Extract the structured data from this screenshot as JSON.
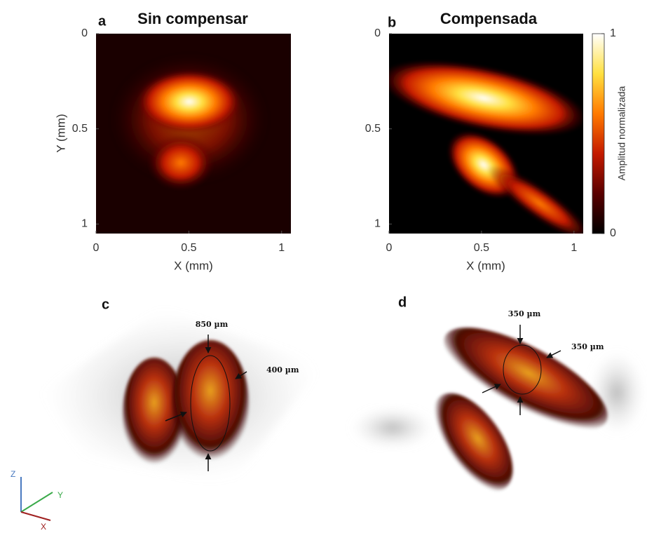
{
  "panels": [
    {
      "label": "a",
      "title": "Sin compensar",
      "xlabel": "X (mm)",
      "ylabel": "Y (mm)",
      "xlim": [
        0,
        1.05
      ],
      "ylim": [
        0,
        1.05
      ],
      "xticks": [
        0,
        0.5,
        1
      ],
      "yticks": [
        0,
        0.5,
        1
      ]
    },
    {
      "label": "b",
      "title": "Compensada",
      "xlabel": "X (mm)",
      "xlim": [
        0,
        1.05
      ],
      "ylim": [
        0,
        1.05
      ],
      "xticks": [
        0,
        0.5,
        1
      ],
      "yticks": [
        0,
        0.5,
        1
      ]
    }
  ],
  "colorbar": {
    "label": "Amplitud normalizada",
    "lim": [
      0,
      1
    ],
    "ticks": [
      0,
      1
    ],
    "colormap": [
      "#000000",
      "#5a0000",
      "#c41a00",
      "#ff7a00",
      "#ffe040",
      "#ffffff"
    ]
  },
  "renders": [
    {
      "label": "c",
      "annotations": [
        "850 µm",
        "400 µm"
      ]
    },
    {
      "label": "d",
      "annotations": [
        "350 µm",
        "350 µm"
      ]
    }
  ],
  "axes_triad": {
    "z": "Z",
    "y": "Y",
    "x": "X"
  }
}
